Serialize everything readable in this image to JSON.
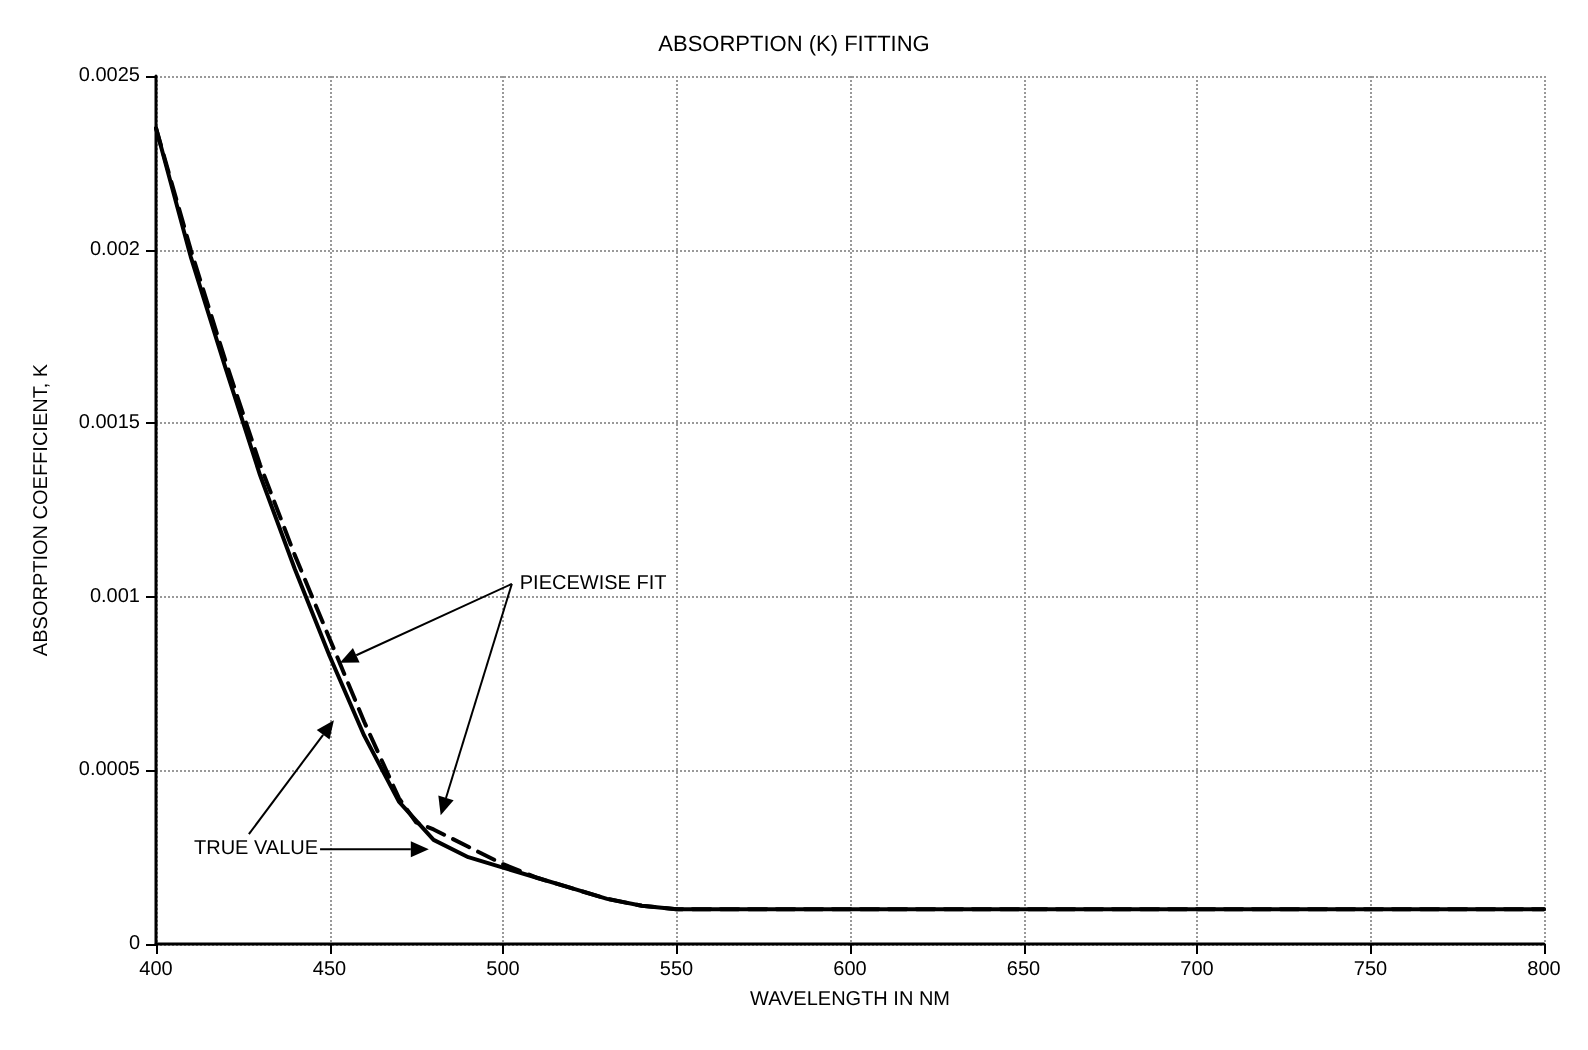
{
  "chart_data": {
    "type": "line",
    "title": "ABSORPTION (K) FITTING",
    "xlabel": "WAVELENGTH IN NM",
    "ylabel": "ABSORPTION COEFFICIENT, K",
    "xlim": [
      400,
      800
    ],
    "xticks": [
      400,
      450,
      500,
      550,
      600,
      650,
      700,
      750,
      800
    ],
    "ylim": [
      0,
      0.0025
    ],
    "yticks": [
      0,
      0.0005,
      0.001,
      0.0015,
      0.002,
      0.0025
    ],
    "grid": true,
    "marker": "none",
    "series": [
      {
        "color": "#000000",
        "line_style": "solid",
        "x": [
          400,
          410,
          420,
          430,
          440,
          450,
          460,
          470,
          480,
          490,
          500,
          510,
          520,
          530,
          540,
          550,
          560,
          600,
          700,
          800
        ],
        "values": [
          0.00235,
          0.00198,
          0.00166,
          0.00135,
          0.00108,
          0.00083,
          0.0006,
          0.00041,
          0.0003,
          0.00025,
          0.00022,
          0.00019,
          0.00016,
          0.00013,
          0.00011,
          0.0001,
          0.0001,
          0.0001,
          0.0001,
          0.0001
        ]
      },
      {
        "color": "#000000",
        "line_style": "dashed",
        "x": [
          400,
          410,
          420,
          430,
          440,
          450,
          460,
          470,
          475,
          480,
          490,
          500,
          510,
          520,
          530,
          540,
          550,
          560,
          600,
          700,
          800
        ],
        "values": [
          0.00235,
          0.002,
          0.00168,
          0.00138,
          0.00112,
          0.00088,
          0.00064,
          0.00042,
          0.00035,
          0.00033,
          0.00028,
          0.00023,
          0.00019,
          0.00016,
          0.00013,
          0.00011,
          0.0001,
          0.0001,
          0.0001,
          0.0001,
          0.0001
        ]
      }
    ],
    "annotations": [
      {
        "text": "PIECEWISE FIT",
        "x": 453,
        "y": 0.00081
      },
      "TRUE VALUE"
    ]
  }
}
